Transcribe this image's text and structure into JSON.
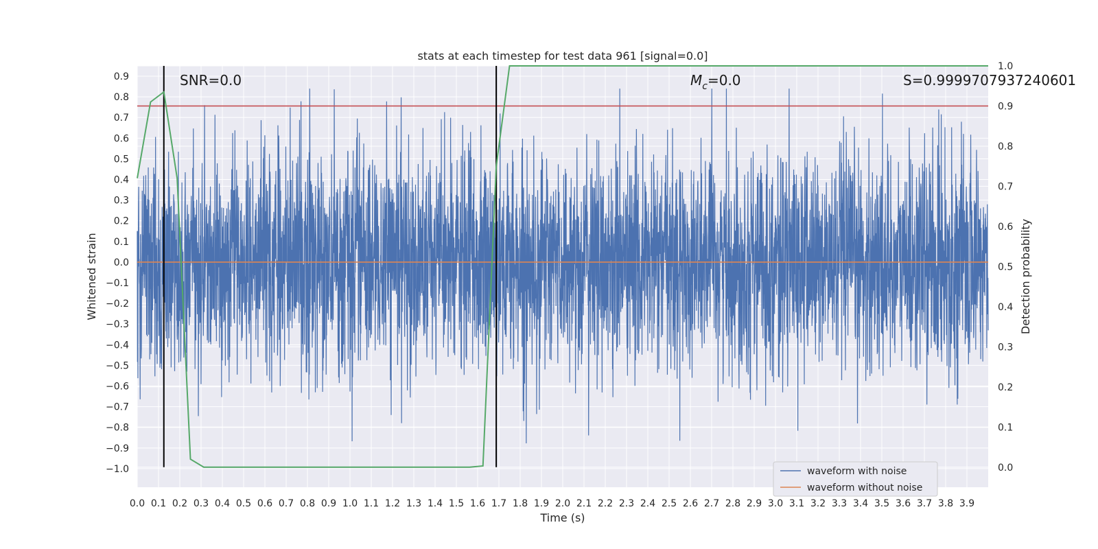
{
  "chart_data": {
    "type": "line",
    "title": "stats at each timestep for test data 961 [signal=0.0]",
    "xlabel": "Time (s)",
    "ylabel": "Whitened strain",
    "y2label": "Detection probability",
    "xlim": [
      0.0,
      4.0
    ],
    "ylim": [
      -1.09,
      0.95
    ],
    "y2lim": [
      -0.05,
      1.0
    ],
    "x_ticks": [
      "0.0",
      "0.1",
      "0.2",
      "0.3",
      "0.4",
      "0.5",
      "0.6",
      "0.7",
      "0.8",
      "0.9",
      "1.0",
      "1.1",
      "1.2",
      "1.3",
      "1.4",
      "1.5",
      "1.6",
      "1.7",
      "1.8",
      "1.9",
      "2.0",
      "2.1",
      "2.2",
      "2.3",
      "2.4",
      "2.5",
      "2.6",
      "2.7",
      "2.8",
      "2.9",
      "3.0",
      "3.1",
      "3.2",
      "3.3",
      "3.4",
      "3.5",
      "3.6",
      "3.7",
      "3.8",
      "3.9"
    ],
    "y_ticks": [
      "0.9",
      "0.8",
      "0.7",
      "0.6",
      "0.5",
      "0.4",
      "0.3",
      "0.2",
      "0.1",
      "0.0",
      "−0.1",
      "−0.2",
      "−0.3",
      "−0.4",
      "−0.5",
      "−0.6",
      "−0.7",
      "−0.8",
      "−0.9",
      "−1.0"
    ],
    "y2_ticks": [
      "1.0",
      "0.9",
      "0.8",
      "0.7",
      "0.6",
      "0.5",
      "0.4",
      "0.3",
      "0.2",
      "0.1",
      "0.0"
    ],
    "grid": true,
    "legend_position": "lower-right",
    "series": [
      {
        "name": "waveform with noise",
        "color": "#4c72b0",
        "axis": "left",
        "noise_amplitude_envelope": [
          0.5,
          0.85
        ],
        "x_range": [
          0.0,
          4.0
        ]
      },
      {
        "name": "waveform without noise",
        "color": "#dd8452",
        "axis": "left",
        "x": [
          0.0,
          4.0
        ],
        "y": [
          0.0,
          0.0
        ]
      },
      {
        "name": "",
        "color": "#55a868",
        "axis": "right",
        "x": [
          0.0,
          0.0625,
          0.125,
          0.1875,
          0.25,
          0.3125,
          0.375,
          0.4375,
          0.5,
          1.5625,
          1.625,
          1.6875,
          1.75,
          1.8125,
          4.0
        ],
        "y": [
          0.72,
          0.91,
          0.935,
          0.72,
          0.02,
          0.0,
          0.0,
          0.0,
          0.0,
          0.0,
          0.003,
          0.75,
          1.0,
          1.0,
          1.0
        ]
      }
    ],
    "threshold": {
      "axis": "right",
      "value": 0.9,
      "color": "#c44e52"
    },
    "vertical_markers": [
      {
        "x": 0.125,
        "color": "#000000"
      },
      {
        "x": 1.6875,
        "color": "#000000"
      }
    ],
    "annotations": [
      {
        "text": "SNR=0.0",
        "x": 0.2
      },
      {
        "text_main": "M",
        "text_sub": "c",
        "text_rest": "=0.0",
        "x": 2.6
      },
      {
        "text": "S=0.9999707937240601",
        "x": 3.6
      }
    ]
  }
}
